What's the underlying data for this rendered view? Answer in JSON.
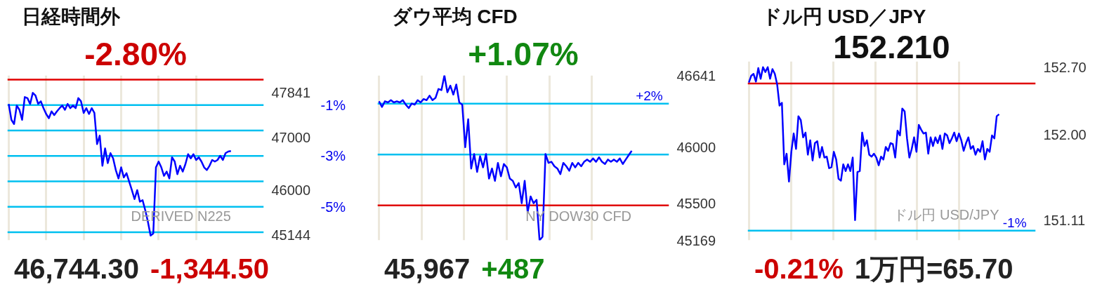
{
  "chart_data": [
    {
      "type": "line",
      "title": "日経時間外",
      "subtitle": "-2.80%",
      "tick_labels": "y",
      "grid": "x",
      "categories": [
        null,
        null,
        null,
        null,
        null,
        null,
        null,
        null,
        null,
        null,
        null,
        null,
        null,
        null,
        null,
        null,
        null,
        null,
        null,
        null,
        null,
        null,
        null,
        null,
        null,
        null,
        null,
        null,
        null,
        null,
        null,
        null,
        null,
        null,
        null,
        null,
        null,
        null,
        null,
        null,
        null,
        null,
        null,
        null,
        null,
        null,
        null,
        null,
        null,
        null,
        null,
        null,
        null,
        null,
        null,
        null,
        null,
        null,
        null,
        null,
        null,
        null,
        null,
        null,
        null,
        null,
        null,
        null,
        null,
        null,
        null,
        null,
        null,
        null,
        null,
        null,
        null,
        null,
        null,
        null,
        null,
        null,
        null,
        null
      ],
      "series": [
        {
          "color": "#0000ff",
          "values": [
            47630,
            47330,
            47250,
            47600,
            47520,
            47330,
            47760,
            47740,
            47630,
            47840,
            47790,
            47630,
            47680,
            47550,
            47440,
            47360,
            47490,
            47420,
            47490,
            47550,
            47600,
            47520,
            47630,
            47550,
            47600,
            47550,
            47740,
            47680,
            47460,
            47550,
            47440,
            47550,
            47460,
            46870,
            47030,
            46460,
            46790,
            46510,
            46700,
            46600,
            46380,
            46220,
            46430,
            46240,
            46320,
            46160,
            46000,
            45830,
            46000,
            45780,
            45810,
            45620,
            45400,
            45140,
            45180,
            46430,
            46540,
            46430,
            46270,
            46350,
            46220,
            46620,
            46540,
            46300,
            46460,
            46350,
            46490,
            46680,
            46600,
            46680,
            46570,
            46620,
            46540,
            46430,
            46380,
            46460,
            46570,
            46540,
            46570,
            46650,
            46570,
            46700,
            46730,
            46740
          ]
        }
      ],
      "ylim": [
        45050,
        48170
      ],
      "yticks": [
        45144,
        46000,
        47000,
        47841
      ],
      "y2lim": [
        -6.32,
        0.17
      ],
      "y2ticks": [
        {
          "value": -1,
          "label": "-1%"
        },
        {
          "value": -3,
          "label": "-3%"
        },
        {
          "value": -5,
          "label": "-5%"
        }
      ],
      "ref_lines": [
        {
          "axis": "y",
          "value": 48088.8,
          "color": "#e00000"
        },
        {
          "axis": "y",
          "value": 47607.9,
          "color": "#00c0f0"
        },
        {
          "axis": "y",
          "value": 47127.0,
          "color": "#00c0f0"
        },
        {
          "axis": "y",
          "value": 46646.1,
          "color": "#00c0f0"
        },
        {
          "axis": "y",
          "value": 46165.2,
          "color": "#00c0f0"
        },
        {
          "axis": "y",
          "value": 45684.4,
          "color": "#00c0f0"
        },
        {
          "axis": "y",
          "value": 45203.5,
          "color": "#00c0f0"
        }
      ],
      "annotations": [
        "46,744.30",
        "-1,344.50",
        "DERIVED N225"
      ]
    },
    {
      "type": "line",
      "title": "ダウ平均 CFD",
      "subtitle": "+1.07%",
      "tick_labels": "y",
      "grid": "x",
      "categories": [
        null,
        null,
        null,
        null,
        null,
        null,
        null,
        null,
        null,
        null,
        null,
        null,
        null,
        null,
        null,
        null,
        null,
        null,
        null,
        null,
        null,
        null,
        null,
        null,
        null,
        null,
        null,
        null,
        null,
        null,
        null,
        null,
        null,
        null,
        null,
        null,
        null,
        null,
        null,
        null,
        null,
        null,
        null,
        null,
        null,
        null,
        null,
        null,
        null,
        null,
        null,
        null,
        null,
        null,
        null,
        null,
        null,
        null,
        null,
        null,
        null,
        null,
        null,
        null,
        null,
        null,
        null,
        null,
        null,
        null,
        null,
        null,
        null,
        null,
        null,
        null,
        null,
        null,
        null,
        null,
        null,
        null,
        null,
        null,
        null,
        null
      ],
      "series": [
        {
          "color": "#0000ff",
          "values": [
            46410,
            46360,
            46410,
            46400,
            46420,
            46400,
            46410,
            46400,
            46420,
            46380,
            46350,
            46390,
            46380,
            46420,
            46400,
            46430,
            46420,
            46460,
            46420,
            46440,
            46520,
            46510,
            46641,
            46490,
            46550,
            46470,
            46560,
            46400,
            46380,
            46000,
            46250,
            45810,
            45940,
            45780,
            45920,
            45820,
            45940,
            45720,
            45810,
            45700,
            45860,
            45740,
            45850,
            45820,
            45720,
            45700,
            45640,
            45680,
            45500,
            45700,
            45420,
            45560,
            45500,
            45530,
            45169,
            45200,
            45940,
            45860,
            45870,
            45830,
            45810,
            45760,
            45860,
            45830,
            45790,
            45860,
            45820,
            45860,
            45830,
            45870,
            45890,
            45870,
            45900,
            45870,
            45910,
            45870,
            45850,
            45890,
            45870,
            45890,
            45870,
            45900,
            45850,
            45890,
            45930,
            45967
          ]
        }
      ],
      "ylim": [
        45169,
        46641
      ],
      "yticks": [
        45169,
        45500,
        46000,
        46641
      ],
      "ref_lines": [
        {
          "axis": "y",
          "value": 45480,
          "color": "#e00000"
        },
        {
          "axis": "y",
          "value": 45934.8,
          "color": "#00c0f0"
        },
        {
          "axis": "y",
          "value": 46389.6,
          "color": "#00c0f0"
        }
      ],
      "annotations": [
        "45,967",
        "+487",
        "NY DOW30 CFD",
        {
          "text": "+2%",
          "y": 46389.6
        }
      ]
    },
    {
      "type": "line",
      "title": "ドル円 USD／JPY",
      "subtitle": "152.210",
      "tick_labels": "y",
      "grid": "x",
      "categories": [
        null,
        null,
        null,
        null,
        null,
        null,
        null,
        null,
        null,
        null,
        null,
        null,
        null,
        null,
        null,
        null,
        null,
        null,
        null,
        null,
        null,
        null,
        null,
        null,
        null,
        null,
        null,
        null,
        null,
        null,
        null,
        null,
        null,
        null,
        null,
        null,
        null,
        null,
        null,
        null,
        null,
        null,
        null,
        null,
        null,
        null,
        null,
        null,
        null,
        null,
        null,
        null,
        null,
        null,
        null,
        null,
        null,
        null,
        null,
        null,
        null,
        null,
        null,
        null,
        null,
        null,
        null,
        null,
        null,
        null,
        null,
        null,
        null,
        null,
        null,
        null,
        null,
        null,
        null,
        null,
        null,
        null,
        null,
        null,
        null,
        null,
        null,
        null,
        null,
        null,
        null,
        null,
        null,
        null,
        null,
        null,
        null,
        null,
        null,
        null,
        null,
        null,
        null,
        null,
        null,
        null,
        null
      ],
      "series": [
        {
          "color": "#0000ff",
          "values": [
            152.54,
            152.61,
            152.63,
            152.55,
            152.69,
            152.58,
            152.7,
            152.65,
            152.7,
            152.58,
            152.68,
            152.63,
            152.52,
            152.3,
            152.33,
            151.69,
            151.8,
            151.51,
            151.82,
            152.01,
            151.85,
            152.19,
            152.15,
            151.97,
            152.02,
            151.79,
            151.94,
            151.73,
            151.91,
            151.93,
            151.76,
            151.87,
            151.76,
            151.77,
            151.65,
            151.66,
            151.82,
            151.74,
            151.54,
            151.52,
            151.69,
            151.62,
            151.69,
            151.62,
            151.76,
            151.11,
            151.61,
            151.62,
            152.02,
            151.88,
            151.94,
            151.79,
            151.77,
            151.8,
            151.76,
            151.68,
            151.77,
            151.74,
            151.87,
            151.83,
            151.91,
            151.9,
            151.76,
            152.04,
            151.99,
            152.27,
            152.24,
            151.96,
            151.76,
            151.85,
            151.97,
            151.82,
            152.1,
            152.05,
            152.01,
            152.02,
            151.8,
            151.97,
            151.88,
            151.97,
            151.91,
            151.99,
            151.85,
            152.01,
            151.99,
            151.91,
            151.96,
            152.02,
            151.93,
            152.01,
            151.94,
            151.83,
            151.91,
            151.97,
            151.85,
            151.88,
            151.79,
            151.85,
            151.82,
            151.93,
            151.74,
            151.85,
            151.82,
            151.99,
            151.96,
            152.19,
            152.21
          ]
        }
      ],
      "ylim": [
        150.9,
        152.76
      ],
      "yticks": [
        {
          "value": 151.11,
          "label": "151.11"
        },
        {
          "value": 152,
          "label": "152.00"
        },
        {
          "value": 152.7,
          "label": "152.70"
        }
      ],
      "ref_lines": [
        {
          "axis": "y",
          "value": 152.53,
          "color": "#e00000"
        },
        {
          "axis": "y",
          "value": 151.0,
          "color": "#00c0f0"
        }
      ],
      "annotations": [
        "-0.21%",
        "1万円=65.70",
        "ドル円 USD/JPY",
        {
          "text": "-1%",
          "y": 151.0
        }
      ]
    }
  ]
}
